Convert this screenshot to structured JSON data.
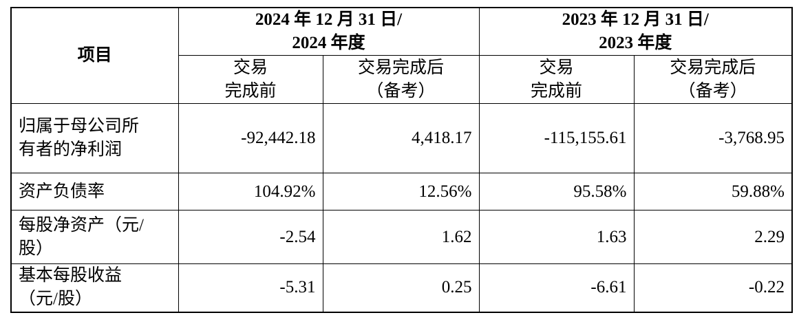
{
  "table": {
    "item_header": "项目",
    "groups": [
      {
        "lines": [
          "2024 年 12 月 31 日/",
          "2024 年度"
        ]
      },
      {
        "lines": [
          "2023 年 12 月 31 日/",
          "2023 年度"
        ]
      }
    ],
    "subheaders": [
      {
        "lines": [
          "交易",
          "完成前"
        ]
      },
      {
        "lines": [
          "交易完成后",
          "（备考）"
        ]
      },
      {
        "lines": [
          "交易",
          "完成前"
        ]
      },
      {
        "lines": [
          "交易完成后",
          "（备考）"
        ]
      }
    ],
    "rows": [
      [
        "归属于母公司所有者的净利润",
        "-92,442.18",
        "4,418.17",
        "-115,155.61",
        "-3,768.95"
      ],
      [
        "资产负债率",
        "104.92%",
        "12.56%",
        "95.58%",
        "59.88%"
      ],
      [
        "每股净资产（元/股）",
        "-2.54",
        "1.62",
        "1.63",
        "2.29"
      ],
      [
        "基本每股收益（元/股）",
        "-5.31",
        "0.25",
        "-6.61",
        "-0.22"
      ]
    ]
  }
}
